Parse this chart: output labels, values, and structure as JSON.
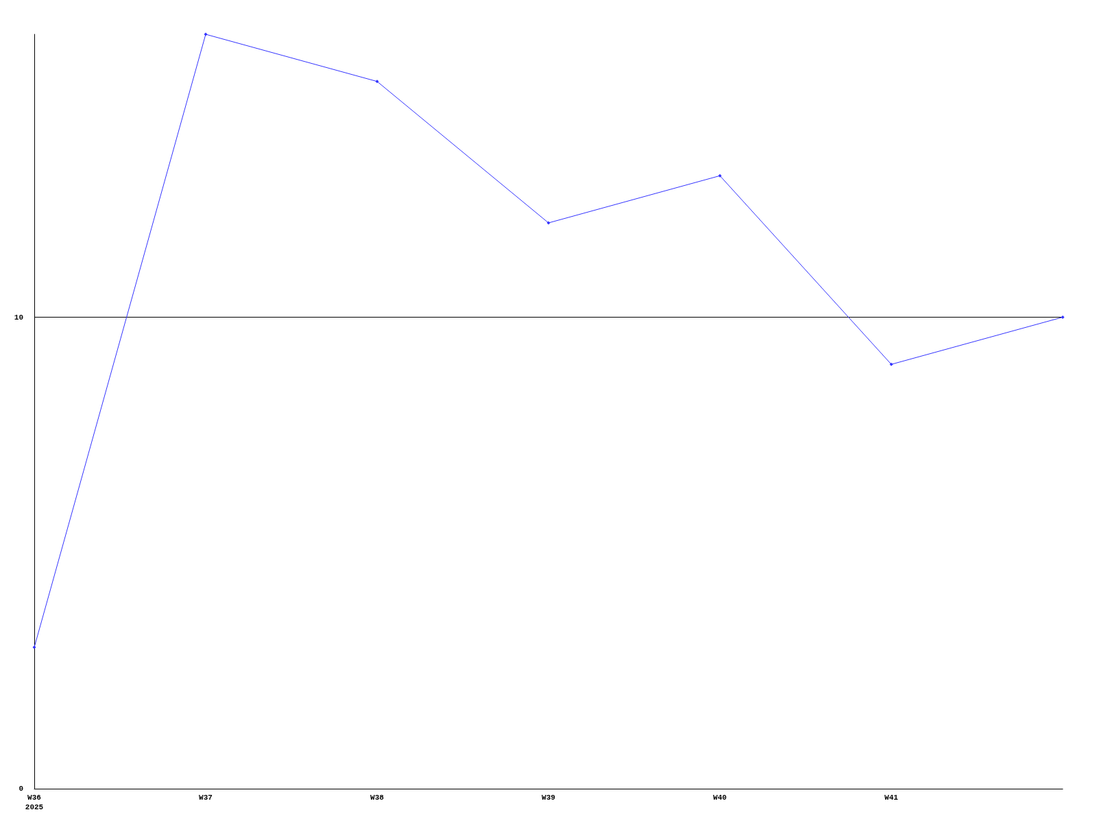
{
  "chart_data": {
    "type": "line",
    "categories": [
      "W36\n2025",
      "W37",
      "W38",
      "W39",
      "W40",
      "W41",
      null
    ],
    "series": [
      {
        "color": "#3333ff",
        "values": [
          3,
          16,
          15,
          12,
          13,
          9,
          10
        ]
      }
    ],
    "ylim": [
      0,
      16
    ],
    "yticks": [
      0,
      10
    ],
    "grid": "y",
    "marker": "diamond",
    "line_style": "solid"
  }
}
